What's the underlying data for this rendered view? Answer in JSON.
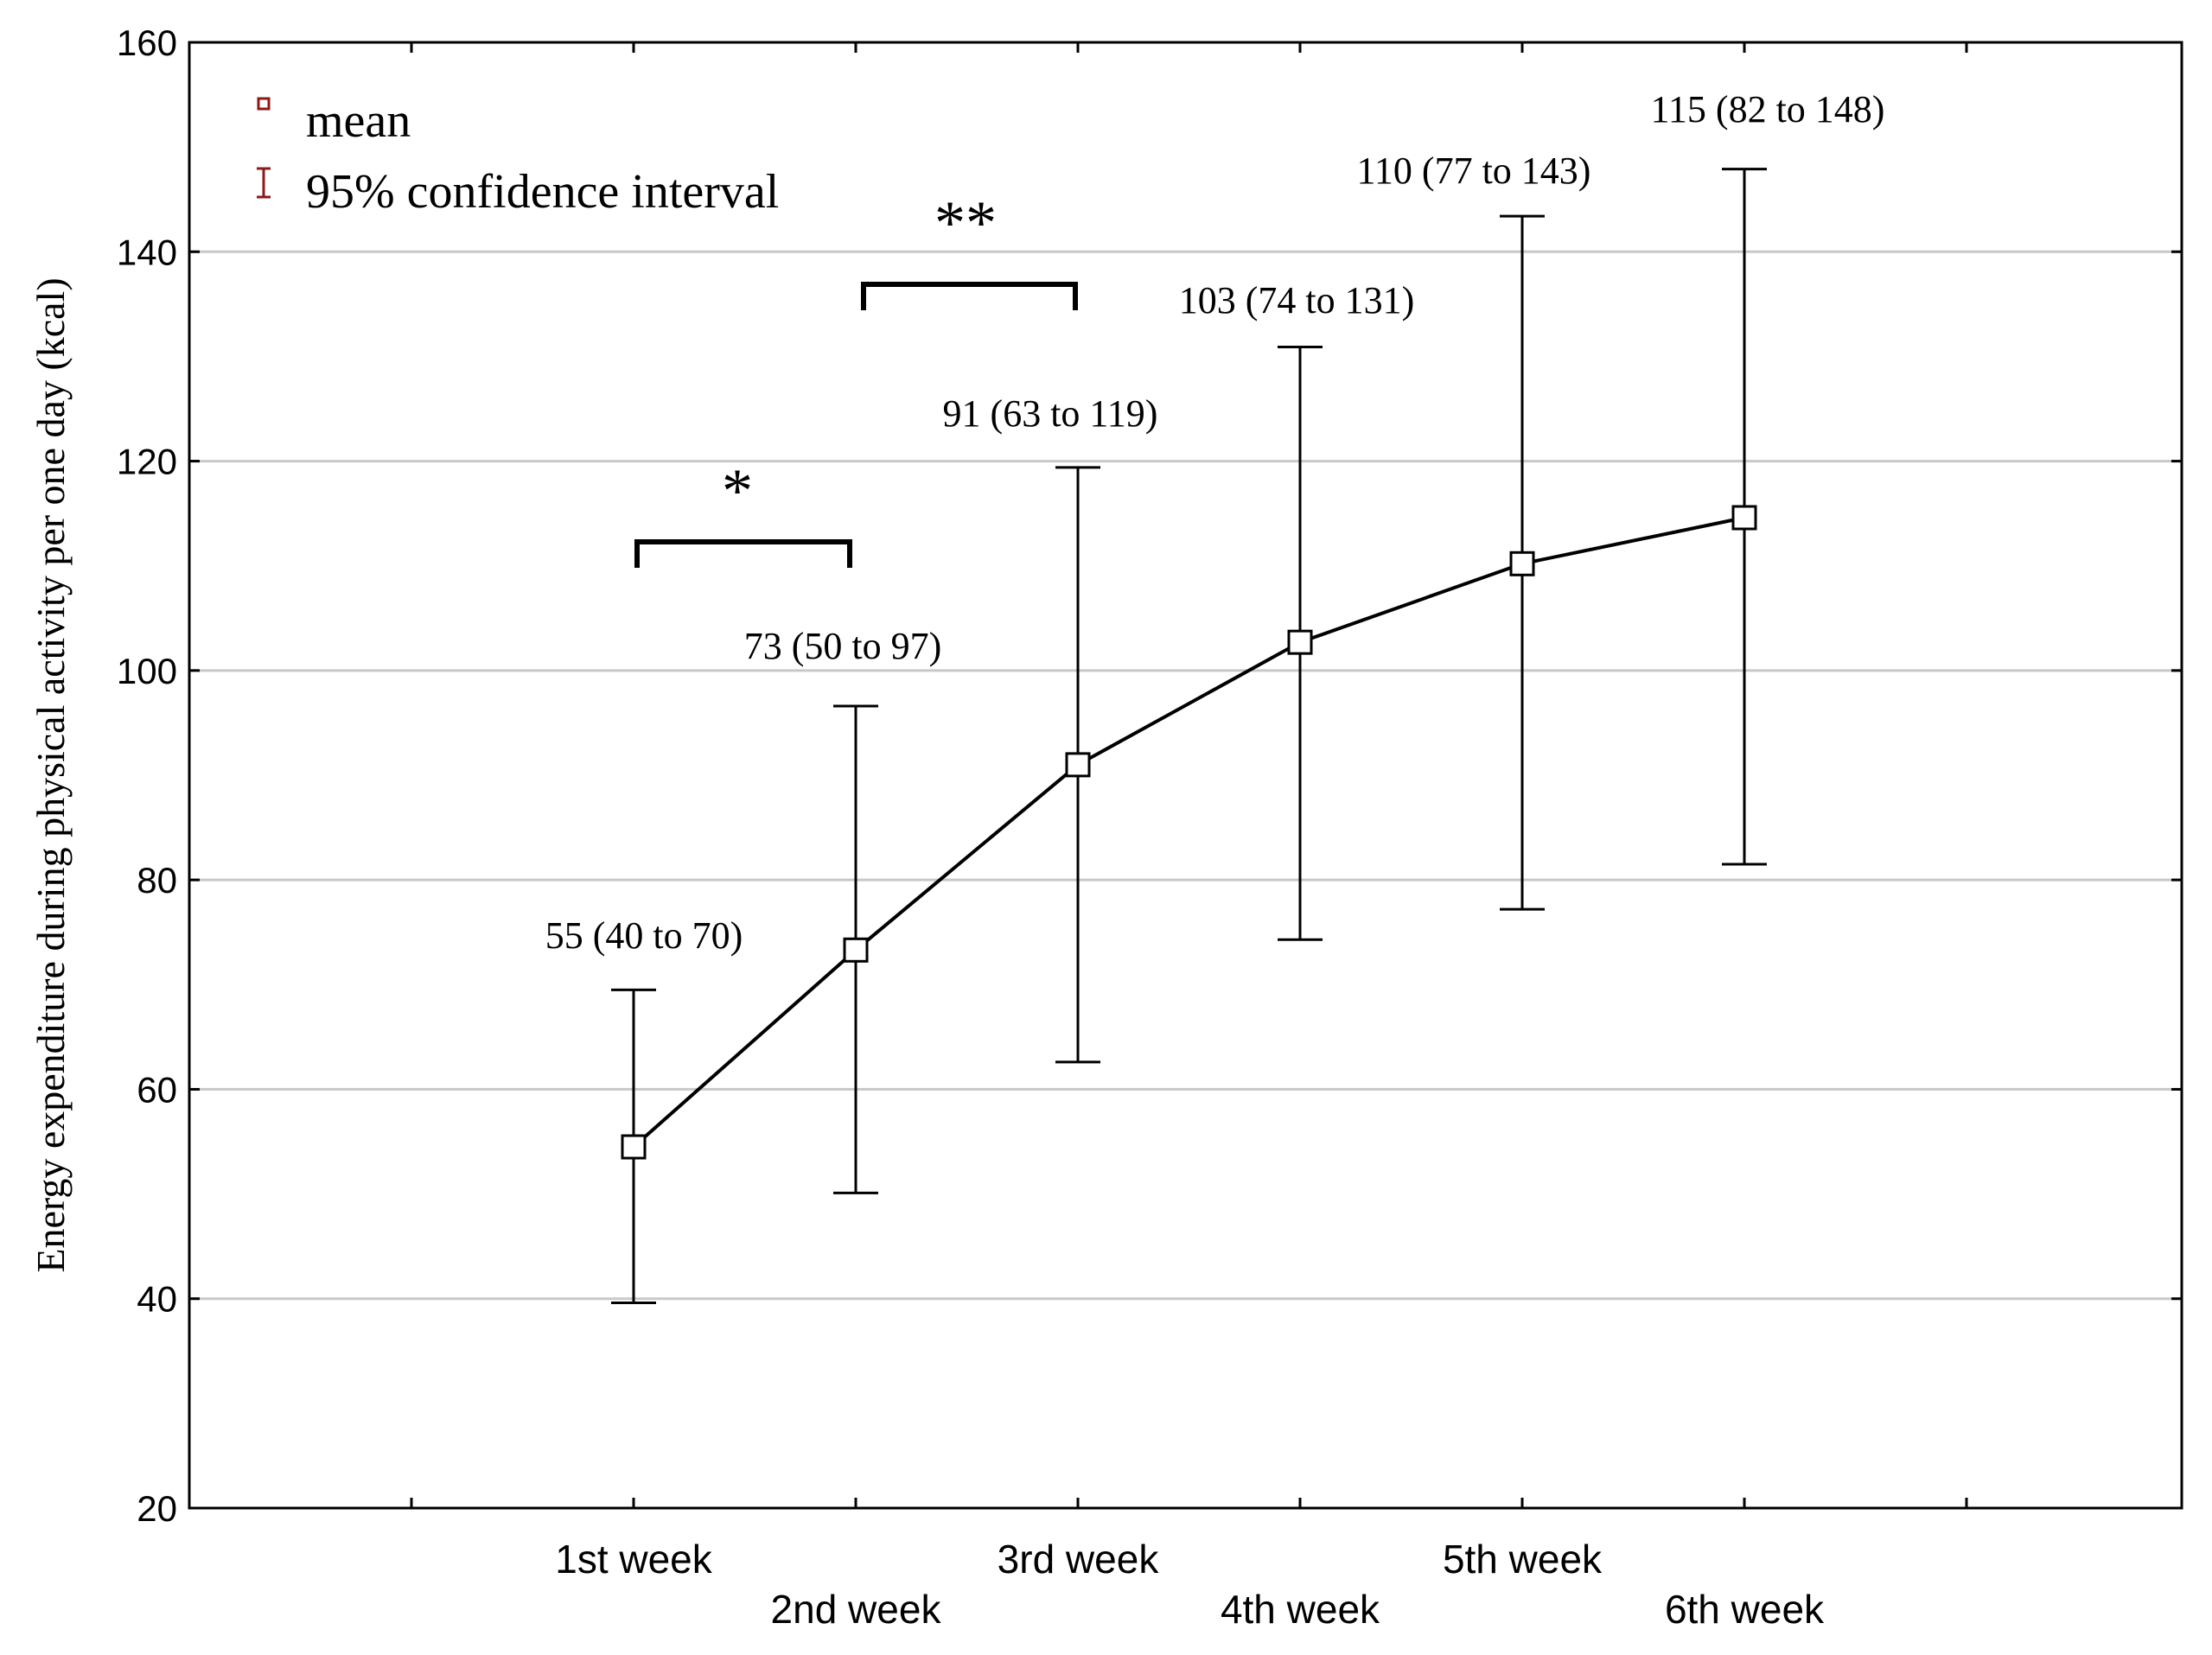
{
  "chart_data": {
    "type": "line",
    "title": "",
    "xlabel": "",
    "ylabel": "Energy expenditure during physical activity per one day (kcal)",
    "ylim": [
      20,
      160
    ],
    "yticks": [
      20,
      40,
      60,
      80,
      100,
      120,
      140,
      160
    ],
    "grid": true,
    "legend_placement": "top-left",
    "legend": {
      "mean_label": "mean",
      "ci_label": "95% confidence interval"
    },
    "categories": [
      "1st week",
      "2nd week",
      "3rd week",
      "4th week",
      "5th week",
      "6th week"
    ],
    "series": [
      {
        "name": "mean",
        "values": [
          54.5,
          73.3,
          91.0,
          102.7,
          110.2,
          114.6
        ],
        "ci_lower": [
          39.6,
          50.1,
          62.6,
          74.3,
          77.2,
          81.5
        ],
        "ci_upper": [
          69.5,
          96.6,
          119.4,
          130.9,
          143.4,
          147.9
        ]
      }
    ],
    "annotations": [
      "55 (40 to 70)",
      "73 (50 to 97)",
      "91 (63 to 119)",
      "103 (74 to 131)",
      "110 (77 to 143)",
      "115 (82 to 148)"
    ],
    "significance": [
      {
        "from": "1st week",
        "to": "2nd week",
        "label": "*",
        "level": 110
      },
      {
        "from": "2nd week",
        "to": "3rd week",
        "label": "**",
        "level": 135
      }
    ],
    "colors": {
      "line": "#000000",
      "grid": "#c8c8c8",
      "legend_marker": "#8b1a1a"
    }
  }
}
